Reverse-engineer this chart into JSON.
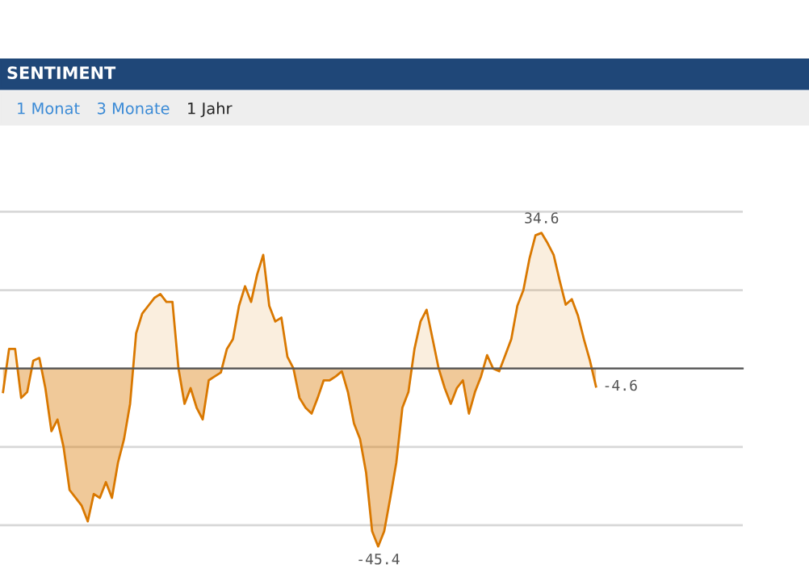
{
  "chart_data": {
    "type": "area",
    "title": "SENTIMENT",
    "annotations": [
      "1 Monat",
      "3 Monate",
      "1 Jahr"
    ],
    "categories": [
      null,
      null,
      null,
      null,
      null,
      null,
      null,
      null,
      null,
      null,
      null,
      null,
      null,
      null,
      null,
      null,
      null,
      null,
      null,
      null,
      null,
      null,
      null,
      null,
      null,
      null,
      null,
      null,
      null,
      null,
      null,
      null,
      null,
      null,
      null,
      null,
      null,
      null,
      null,
      null,
      null,
      null,
      null,
      null,
      null,
      null,
      null,
      null,
      null,
      null,
      null,
      null,
      null,
      null,
      null,
      null,
      null,
      null,
      null,
      null,
      null,
      null,
      null,
      null,
      null,
      null,
      null,
      null,
      null,
      null,
      null,
      null,
      null,
      null,
      null,
      null,
      null,
      null,
      null,
      null,
      null,
      null,
      null,
      null,
      null,
      null,
      null,
      null,
      null,
      null,
      null,
      null,
      null,
      null,
      null,
      null,
      null,
      null,
      null
    ],
    "series": [
      {
        "color": "#d97800",
        "values": [
          -6,
          5,
          5,
          -7.5,
          -6,
          2,
          2.7,
          -5,
          -16,
          -13,
          -20,
          -31,
          -33,
          -35,
          -39,
          -32,
          -33,
          -29,
          -33,
          -24,
          -18,
          -9,
          9,
          14,
          16,
          18,
          19,
          17,
          17,
          0,
          -9,
          -5,
          -10,
          -13,
          -3,
          -2,
          -1,
          5,
          7.5,
          16,
          21,
          17,
          24,
          29,
          16,
          12,
          13,
          3,
          0,
          -7.5,
          -10,
          -11.5,
          -7.5,
          -3,
          -3,
          -2,
          -0.7,
          -6,
          -14,
          -18,
          -26.5,
          -41.5,
          -45.4,
          -41.5,
          -33,
          -24,
          -10,
          -6,
          5,
          12,
          15,
          7.5,
          0,
          -5,
          -9,
          -5,
          -3,
          -11.5,
          -6,
          -2,
          3.4,
          0,
          -0.7,
          3.4,
          7.5,
          16,
          20,
          28,
          34,
          34.6,
          32,
          29,
          22.4,
          16.3,
          17.7,
          13.6,
          7.5,
          2,
          -4.6
        ],
        "value_labels": [
          null,
          null,
          null,
          null,
          null,
          null,
          null,
          null,
          null,
          null,
          null,
          null,
          null,
          null,
          null,
          null,
          null,
          null,
          null,
          null,
          null,
          null,
          null,
          null,
          null,
          null,
          null,
          null,
          null,
          null,
          null,
          null,
          null,
          null,
          null,
          null,
          null,
          null,
          null,
          null,
          null,
          null,
          null,
          null,
          null,
          null,
          null,
          null,
          null,
          null,
          null,
          null,
          null,
          null,
          null,
          null,
          null,
          null,
          null,
          null,
          null,
          null,
          "-45.4",
          null,
          null,
          null,
          null,
          null,
          null,
          null,
          null,
          null,
          null,
          null,
          null,
          null,
          null,
          null,
          null,
          null,
          null,
          null,
          null,
          null,
          null,
          null,
          null,
          null,
          null,
          "34.6",
          null,
          null,
          null,
          null,
          null,
          null,
          null,
          null,
          "-4.6"
        ]
      }
    ],
    "yticks": [
      {
        "value": -40,
        "label": null
      },
      {
        "value": -20,
        "label": null
      },
      {
        "value": 0,
        "label": null
      },
      {
        "value": 20,
        "label": null
      },
      {
        "value": 40,
        "label": null
      }
    ],
    "grid": "y"
  }
}
